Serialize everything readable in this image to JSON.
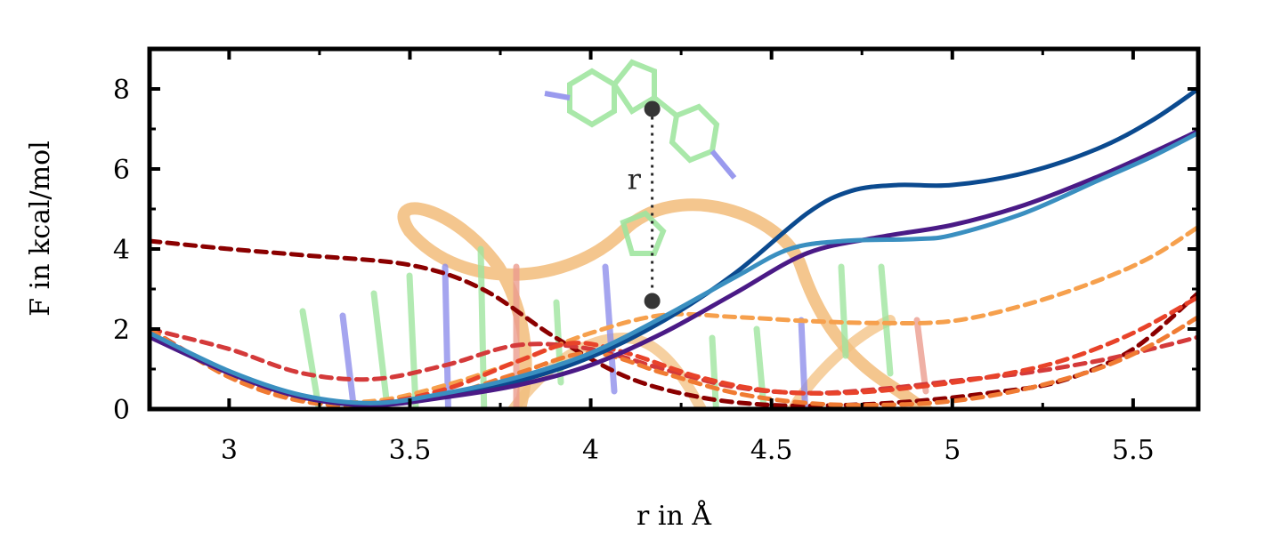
{
  "chart_data": {
    "type": "line",
    "title": "",
    "xlabel": "r in Å",
    "ylabel": "F in kcal/mol",
    "xlim": [
      2.78,
      5.68
    ],
    "ylim": [
      0,
      9
    ],
    "xticks": [
      3,
      3.5,
      4,
      4.5,
      5,
      5.5
    ],
    "xtick_labels": [
      "3",
      "3.5",
      "4",
      "4.5",
      "5",
      "5.5"
    ],
    "yticks": [
      0,
      2,
      4,
      6,
      8
    ],
    "ytick_labels": [
      "0",
      "2",
      "4",
      "6",
      "8"
    ],
    "grid": false,
    "legend": "none",
    "inset": {
      "description_label": "r",
      "point_a": {
        "x": 4.17,
        "y": 7.5
      },
      "point_b": {
        "x": 4.17,
        "y": 2.7
      }
    },
    "series": [
      {
        "style": "solid",
        "color": "#0b4a8f",
        "x": [
          2.78,
          3.0,
          3.2,
          3.4,
          3.6,
          3.8,
          4.0,
          4.2,
          4.4,
          4.6,
          4.72,
          4.85,
          5.0,
          5.2,
          5.4,
          5.55,
          5.68
        ],
        "y": [
          1.85,
          0.9,
          0.3,
          0.1,
          0.35,
          0.7,
          1.3,
          2.2,
          3.4,
          4.9,
          5.45,
          5.6,
          5.6,
          5.9,
          6.5,
          7.2,
          8.0
        ]
      },
      {
        "style": "solid",
        "color": "#4a1a86",
        "x": [
          2.78,
          3.0,
          3.2,
          3.4,
          3.6,
          3.8,
          4.0,
          4.2,
          4.4,
          4.6,
          4.8,
          5.0,
          5.2,
          5.4,
          5.55,
          5.68
        ],
        "y": [
          1.8,
          0.9,
          0.3,
          0.1,
          0.3,
          0.6,
          1.1,
          1.9,
          2.9,
          3.9,
          4.3,
          4.6,
          5.1,
          5.8,
          6.4,
          6.95
        ]
      },
      {
        "style": "solid",
        "color": "#3a8fc0",
        "x": [
          2.78,
          3.0,
          3.2,
          3.4,
          3.6,
          3.8,
          4.0,
          4.2,
          4.4,
          4.55,
          4.7,
          4.9,
          5.0,
          5.2,
          5.4,
          5.55,
          5.68
        ],
        "y": [
          1.9,
          0.95,
          0.35,
          0.15,
          0.4,
          0.8,
          1.4,
          2.3,
          3.3,
          4.0,
          4.2,
          4.25,
          4.35,
          4.9,
          5.7,
          6.3,
          6.9
        ]
      },
      {
        "style": "dashed",
        "color": "#8b0000",
        "x": [
          2.78,
          3.0,
          3.2,
          3.5,
          3.7,
          3.9,
          4.1,
          4.3,
          4.5,
          4.7,
          4.9,
          5.1,
          5.3,
          5.5,
          5.68
        ],
        "y": [
          4.2,
          4.0,
          3.85,
          3.6,
          3.0,
          1.8,
          0.8,
          0.3,
          0.1,
          0.1,
          0.2,
          0.4,
          0.7,
          1.5,
          2.9
        ]
      },
      {
        "style": "dashed",
        "color": "#f6a04d",
        "x": [
          2.78,
          3.0,
          3.2,
          3.4,
          3.6,
          3.8,
          4.0,
          4.2,
          4.4,
          4.6,
          4.8,
          5.0,
          5.2,
          5.4,
          5.55,
          5.68
        ],
        "y": [
          2.0,
          0.8,
          0.25,
          0.2,
          0.6,
          1.2,
          1.9,
          2.35,
          2.3,
          2.2,
          2.15,
          2.2,
          2.6,
          3.2,
          3.8,
          4.55
        ]
      },
      {
        "style": "dashed",
        "color": "#d43a3a",
        "x": [
          2.78,
          3.0,
          3.2,
          3.4,
          3.6,
          3.8,
          4.0,
          4.2,
          4.4,
          4.6,
          4.8,
          5.0,
          5.2,
          5.4,
          5.55,
          5.68
        ],
        "y": [
          2.0,
          1.5,
          0.9,
          0.75,
          1.1,
          1.6,
          1.5,
          1.0,
          0.55,
          0.4,
          0.5,
          0.7,
          0.9,
          1.2,
          1.5,
          1.8
        ]
      },
      {
        "style": "dashed",
        "color": "#e8432a",
        "x": [
          2.78,
          3.0,
          3.2,
          3.4,
          3.6,
          3.8,
          3.95,
          4.1,
          4.3,
          4.5,
          4.7,
          4.9,
          5.1,
          5.3,
          5.5,
          5.68
        ],
        "y": [
          2.0,
          0.85,
          0.25,
          0.15,
          0.5,
          1.2,
          1.65,
          1.4,
          0.8,
          0.45,
          0.4,
          0.55,
          0.8,
          1.2,
          1.9,
          2.8
        ]
      },
      {
        "style": "dashed",
        "color": "#f07b33",
        "x": [
          2.78,
          3.0,
          3.2,
          3.4,
          3.6,
          3.8,
          4.0,
          4.2,
          4.4,
          4.6,
          4.8,
          5.0,
          5.2,
          5.4,
          5.55,
          5.68
        ],
        "y": [
          2.0,
          0.8,
          0.2,
          0.1,
          0.35,
          0.9,
          1.4,
          0.9,
          0.4,
          0.15,
          0.1,
          0.2,
          0.5,
          1.0,
          1.6,
          2.3
        ]
      }
    ]
  }
}
